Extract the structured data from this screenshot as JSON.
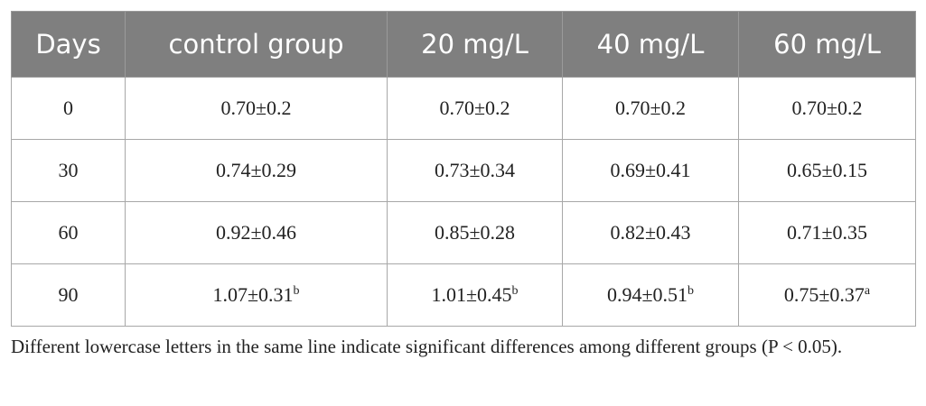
{
  "table": {
    "header": [
      "Days",
      "control group",
      "20 mg/L",
      "40 mg/L",
      "60 mg/L"
    ],
    "rows": [
      [
        "0",
        "0.70±0.2",
        "0.70±0.2",
        "0.70±0.2",
        "0.70±0.2"
      ],
      [
        "30",
        "0.74±0.29",
        "0.73±0.34",
        "0.69±0.41",
        "0.65±0.15"
      ],
      [
        "60",
        "0.92±0.46",
        "0.85±0.28",
        "0.82±0.43",
        "0.71±0.35"
      ],
      [
        "90",
        {
          "text": "1.07±0.31",
          "sup": "b"
        },
        {
          "text": "1.01±0.45",
          "sup": "b"
        },
        {
          "text": "0.94±0.51",
          "sup": "b"
        },
        {
          "text": "0.75±0.37",
          "sup": "a"
        }
      ]
    ]
  },
  "footnote": "Different lowercase letters in the same line indicate significant differences among different groups (P < 0.05)."
}
